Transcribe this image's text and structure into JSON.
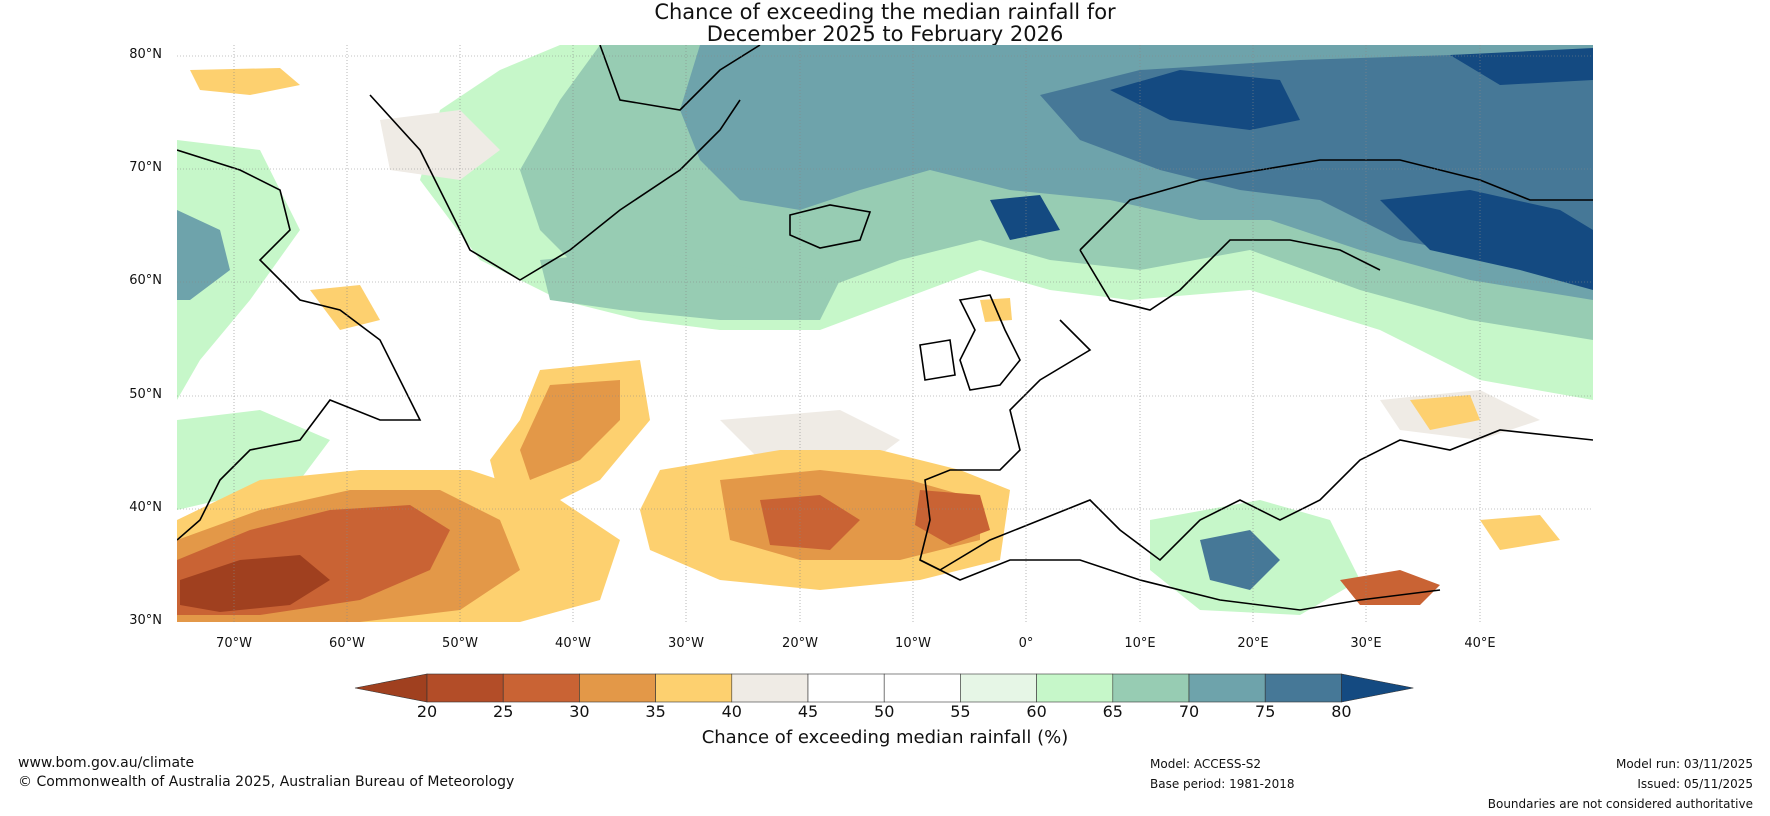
{
  "title": {
    "line1": "Chance of exceeding the median rainfall for",
    "line2": "December 2025 to February 2026"
  },
  "map": {
    "lat_labels": [
      "80°N",
      "70°N",
      "60°N",
      "50°N",
      "40°N",
      "30°N"
    ],
    "lon_labels": [
      "70°W",
      "60°W",
      "50°W",
      "40°W",
      "30°W",
      "20°W",
      "10°W",
      "0°",
      "10°E",
      "20°E",
      "30°E",
      "40°E"
    ],
    "extent": {
      "lon_min": -75,
      "lon_max": 50,
      "lat_min": 30,
      "lat_max": 81
    }
  },
  "colorbar": {
    "title": "Chance of exceeding median rainfall (%)",
    "ticks": [
      "20",
      "25",
      "30",
      "35",
      "40",
      "45",
      "50",
      "55",
      "60",
      "65",
      "70",
      "75",
      "80"
    ],
    "colors": [
      "#a0401f",
      "#b34d28",
      "#c96334",
      "#e39848",
      "#fdd06f",
      "#efebe5",
      "#ffffff",
      "#ffffff",
      "#e6f6e6",
      "#c6f7c9",
      "#97ccb3",
      "#6ea3ab",
      "#467897",
      "#144a81"
    ]
  },
  "footer": {
    "website": "www.bom.gov.au/climate",
    "copyright": "© Commonwealth of Australia 2025, Australian Bureau of Meteorology",
    "model": "Model: ACCESS-S2",
    "base_period": "Base period: 1981-2018",
    "model_run": "Model run: 03/11/2025",
    "issued": "Issued: 05/11/2025",
    "disclaimer": "Boundaries are not considered authoritative"
  }
}
